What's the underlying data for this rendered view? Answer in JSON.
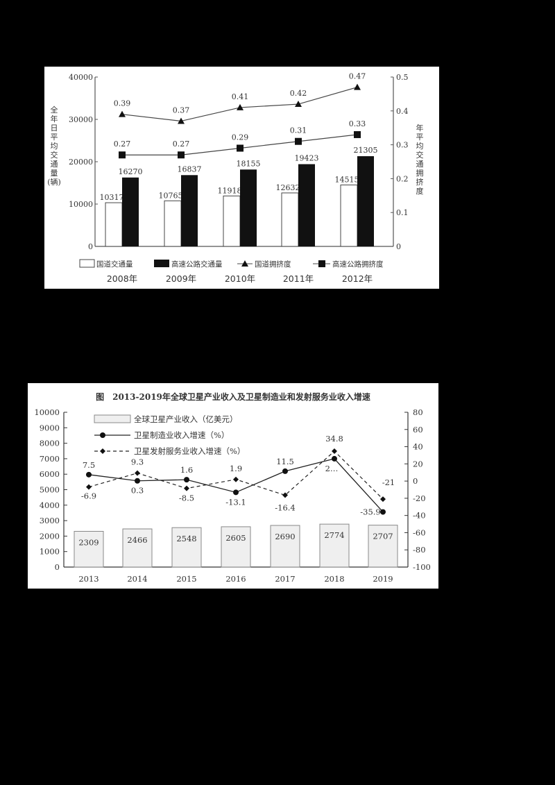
{
  "chart_data": [
    {
      "type": "bar",
      "title": "",
      "categories": [
        "2008年",
        "2009年",
        "2010年",
        "2011年",
        "2012年"
      ],
      "ylabel": "全年日平均交通量（辆）",
      "y2label": "年平均交通拥挤度",
      "ylim": [
        0,
        40000
      ],
      "y2lim": [
        0,
        0.5
      ],
      "yticks": [
        "0",
        "10000",
        "20000",
        "30000",
        "40000"
      ],
      "y2ticks": [
        "0",
        "0.1",
        "0.2",
        "0.3",
        "0.4",
        "0.5"
      ],
      "legend_position": "bottom",
      "grid": false,
      "series": [
        {
          "name": "国道交通量",
          "kind": "bar",
          "axis": "left",
          "fill": "#ffffff",
          "values": [
            10317,
            10765,
            11918,
            12632,
            14515
          ],
          "labels": [
            "10317",
            "10765",
            "11918",
            "12632",
            "14515"
          ]
        },
        {
          "name": "高速公路交通量",
          "kind": "bar",
          "axis": "left",
          "fill": "#111111",
          "values": [
            16270,
            16837,
            18155,
            19423,
            21305
          ],
          "labels": [
            "16270",
            "16837",
            "18155",
            "19423",
            "21305"
          ]
        },
        {
          "name": "国道拥挤度",
          "kind": "line",
          "marker": "triangle",
          "axis": "right",
          "values": [
            0.39,
            0.37,
            0.41,
            0.42,
            0.47
          ],
          "labels": [
            "0.39",
            "0.37",
            "0.41",
            "0.42",
            "0.47"
          ]
        },
        {
          "name": "高速公路拥挤度",
          "kind": "line",
          "marker": "square",
          "axis": "right",
          "values": [
            0.27,
            0.27,
            0.29,
            0.31,
            0.33
          ],
          "labels": [
            "0.27",
            "0.27",
            "0.29",
            "0.31",
            "0.33"
          ]
        }
      ]
    },
    {
      "type": "bar",
      "title": "图　2013-2019年全球卫星产业收入及卫星制造业和发射服务业收入增速",
      "categories": [
        "2013",
        "2014",
        "2015",
        "2016",
        "2017",
        "2018",
        "2019"
      ],
      "ylim": [
        0,
        10000
      ],
      "y2lim": [
        -100,
        80
      ],
      "yticks": [
        "0",
        "1000",
        "2000",
        "3000",
        "4000",
        "5000",
        "6000",
        "7000",
        "8000",
        "9000",
        "10000"
      ],
      "y2ticks": [
        "-100",
        "-80",
        "-60",
        "-40",
        "-20",
        "0",
        "20",
        "40",
        "60",
        "80"
      ],
      "legend_position": "top-left",
      "grid": false,
      "series": [
        {
          "name": "全球卫星产业收入（亿美元）",
          "kind": "bar",
          "axis": "left",
          "fill": "#efefef",
          "values": [
            2309,
            2466,
            2548,
            2605,
            2690,
            2774,
            2707
          ],
          "labels": [
            "2309",
            "2466",
            "2548",
            "2605",
            "2690",
            "2774",
            "2707"
          ]
        },
        {
          "name": "卫星制造业收入增速（%）",
          "kind": "line",
          "style": "solid",
          "marker": "circle",
          "axis": "right",
          "values": [
            7.5,
            0.3,
            1.6,
            -13.1,
            11.5,
            26,
            -35.9
          ],
          "labels": [
            "7.5",
            "0.3",
            "1.6",
            "-13.1",
            "11.5",
            "2…",
            "-35.9"
          ]
        },
        {
          "name": "卫星发射服务业收入增速（%）",
          "kind": "line",
          "style": "dashed",
          "marker": "diamond",
          "axis": "right",
          "values": [
            -6.9,
            9.3,
            -8.5,
            1.9,
            -16.4,
            34.8,
            -21
          ],
          "labels": [
            "-6.9",
            "9.3",
            "-8.5",
            "1.9",
            "-16.4",
            "34.8",
            "-21"
          ]
        }
      ]
    }
  ],
  "chart1": {
    "ylabel_chars": [
      "全",
      "年",
      "日",
      "平",
      "均",
      "交",
      "通",
      "量",
      "(辆)"
    ],
    "y2label_chars": [
      "年",
      "平",
      "均",
      "交",
      "通",
      "拥",
      "挤",
      "度"
    ]
  }
}
